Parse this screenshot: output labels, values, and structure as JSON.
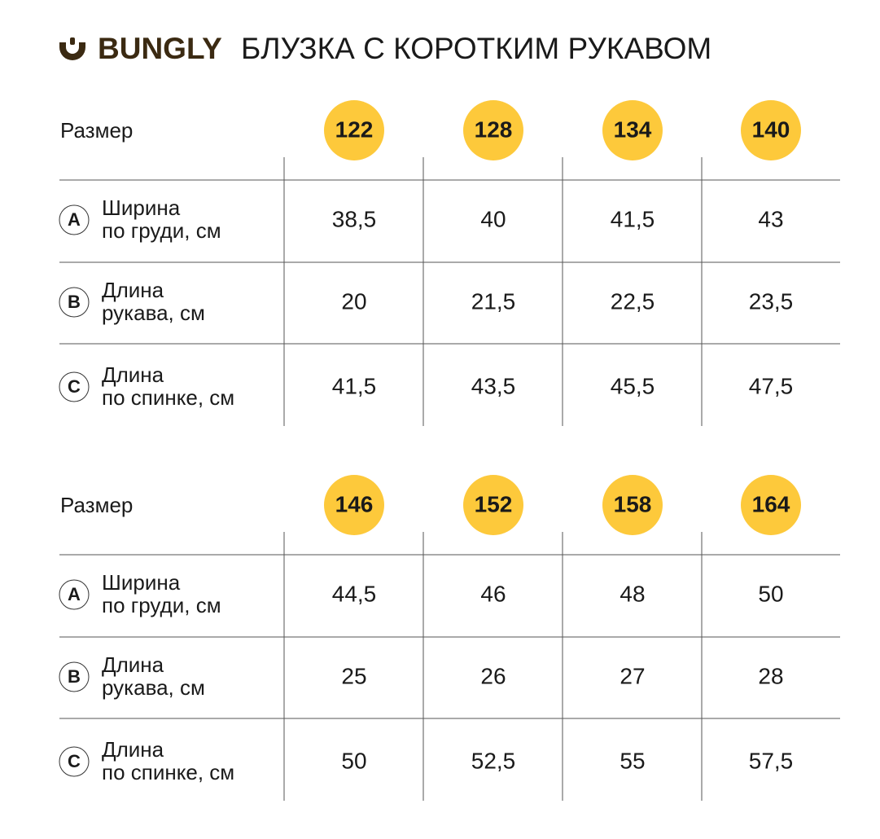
{
  "header": {
    "brand": "BUNGLY",
    "title": "БЛУЗКА С КОРОТКИМ РУКАВОМ"
  },
  "tables": [
    {
      "size_label": "Размер",
      "sizes": [
        "122",
        "128",
        "134",
        "140"
      ],
      "rows": [
        {
          "letter": "A",
          "label": [
            "Ширина",
            "по груди, см"
          ],
          "values": [
            "38,5",
            "40",
            "41,5",
            "43"
          ]
        },
        {
          "letter": "B",
          "label": [
            "Длина",
            "рукава, см"
          ],
          "values": [
            "20",
            "21,5",
            "22,5",
            "23,5"
          ]
        },
        {
          "letter": "C",
          "label": [
            "Длина",
            "по спинке, см"
          ],
          "values": [
            "41,5",
            "43,5",
            "45,5",
            "47,5"
          ]
        }
      ]
    },
    {
      "size_label": "Размер",
      "sizes": [
        "146",
        "152",
        "158",
        "164"
      ],
      "rows": [
        {
          "letter": "A",
          "label": [
            "Ширина",
            "по груди, см"
          ],
          "values": [
            "44,5",
            "46",
            "48",
            "50"
          ]
        },
        {
          "letter": "B",
          "label": [
            "Длина",
            "рукава, см"
          ],
          "values": [
            "25",
            "26",
            "27",
            "28"
          ]
        },
        {
          "letter": "C",
          "label": [
            "Длина",
            "по спинке, см"
          ],
          "values": [
            "50",
            "52,5",
            "55",
            "57,5"
          ]
        }
      ]
    }
  ]
}
